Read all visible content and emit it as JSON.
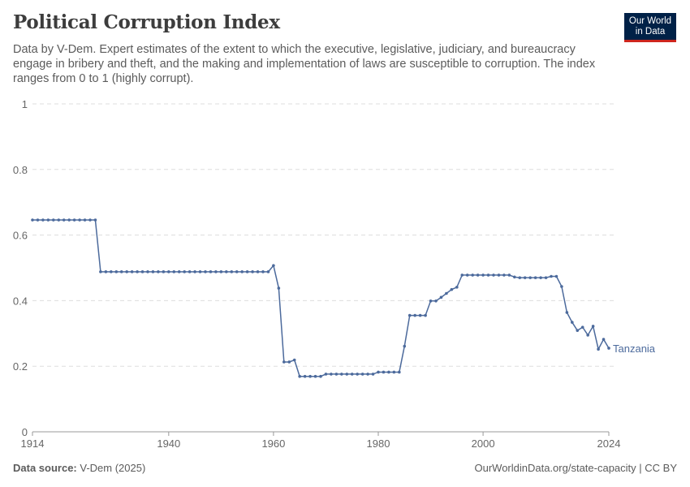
{
  "title": "Political Corruption Index",
  "subtitle": "Data by V-Dem. Expert estimates of the extent to which the executive, legislative, judiciary, and bureaucracy engage in bribery and theft, and the making and implementation of laws are susceptible to corruption. The index ranges from 0 to 1 (highly corrupt).",
  "logo": "Our World in Data",
  "footer": {
    "source_label": "Data source:",
    "source": "V-Dem (2025)",
    "right": "OurWorldinData.org/state-capacity | CC BY"
  },
  "colors": {
    "series": "#4c6a9c",
    "grid": "#dddddd",
    "text": "#666666"
  },
  "chart_data": {
    "type": "line",
    "title": "Political Corruption Index",
    "xlim": [
      1914,
      2024
    ],
    "ylim": [
      0,
      1
    ],
    "grid": "horizontal-dashed",
    "xticks": [
      "1914",
      "1940",
      "1960",
      "1980",
      "2000",
      "2024"
    ],
    "yticks": [
      "0",
      "0.2",
      "0.4",
      "0.6",
      "0.8",
      "1"
    ],
    "series": [
      {
        "name": "Tanzania",
        "x": [
          1914,
          1915,
          1916,
          1917,
          1918,
          1919,
          1920,
          1921,
          1922,
          1923,
          1924,
          1925,
          1926,
          1927,
          1928,
          1929,
          1930,
          1931,
          1932,
          1933,
          1934,
          1935,
          1936,
          1937,
          1938,
          1939,
          1940,
          1941,
          1942,
          1943,
          1944,
          1945,
          1946,
          1947,
          1948,
          1949,
          1950,
          1951,
          1952,
          1953,
          1954,
          1955,
          1956,
          1957,
          1958,
          1959,
          1960,
          1961,
          1962,
          1963,
          1964,
          1965,
          1966,
          1967,
          1968,
          1969,
          1970,
          1971,
          1972,
          1973,
          1974,
          1975,
          1976,
          1977,
          1978,
          1979,
          1980,
          1981,
          1982,
          1983,
          1984,
          1985,
          1986,
          1987,
          1988,
          1989,
          1990,
          1991,
          1992,
          1993,
          1994,
          1995,
          1996,
          1997,
          1998,
          1999,
          2000,
          2001,
          2002,
          2003,
          2004,
          2005,
          2006,
          2007,
          2008,
          2009,
          2010,
          2011,
          2012,
          2013,
          2014,
          2015,
          2016,
          2017,
          2018,
          2019,
          2020,
          2021,
          2022,
          2023,
          2024
        ],
        "y": [
          0.646,
          0.646,
          0.646,
          0.646,
          0.646,
          0.646,
          0.646,
          0.646,
          0.646,
          0.646,
          0.646,
          0.646,
          0.646,
          0.488,
          0.488,
          0.488,
          0.488,
          0.488,
          0.488,
          0.488,
          0.488,
          0.488,
          0.488,
          0.488,
          0.488,
          0.488,
          0.488,
          0.488,
          0.488,
          0.488,
          0.488,
          0.488,
          0.488,
          0.488,
          0.488,
          0.488,
          0.488,
          0.488,
          0.488,
          0.488,
          0.488,
          0.488,
          0.488,
          0.488,
          0.488,
          0.488,
          0.507,
          0.438,
          0.213,
          0.213,
          0.219,
          0.169,
          0.169,
          0.169,
          0.169,
          0.169,
          0.176,
          0.176,
          0.176,
          0.176,
          0.176,
          0.176,
          0.176,
          0.176,
          0.176,
          0.176,
          0.182,
          0.182,
          0.182,
          0.182,
          0.182,
          0.261,
          0.355,
          0.355,
          0.355,
          0.355,
          0.399,
          0.399,
          0.41,
          0.422,
          0.434,
          0.441,
          0.478,
          0.478,
          0.478,
          0.478,
          0.478,
          0.478,
          0.478,
          0.478,
          0.478,
          0.478,
          0.472,
          0.47,
          0.47,
          0.47,
          0.47,
          0.47,
          0.47,
          0.474,
          0.474,
          0.443,
          0.364,
          0.334,
          0.309,
          0.319,
          0.295,
          0.322,
          0.252,
          0.282,
          0.255
        ]
      }
    ]
  }
}
